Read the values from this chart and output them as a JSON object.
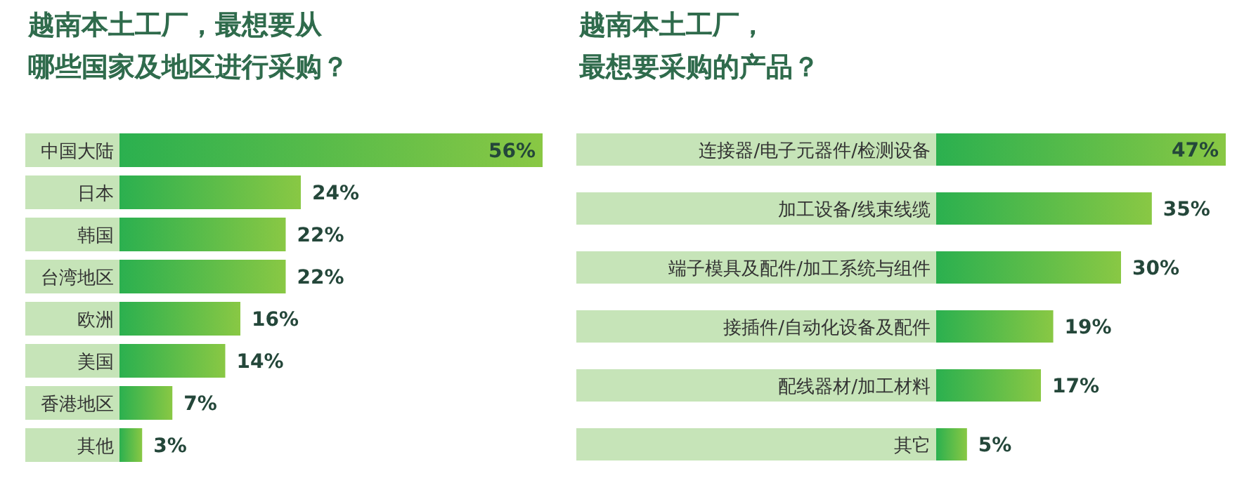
{
  "chart_data": [
    {
      "type": "bar",
      "orientation": "horizontal",
      "title": "越南本土工厂，最想要从哪些国家及地区进行采购？",
      "categories": [
        "中国大陆",
        "日本",
        "韩国",
        "台湾地区",
        "欧洲",
        "美国",
        "香港地区",
        "其他"
      ],
      "values": [
        56,
        24,
        22,
        22,
        16,
        14,
        7,
        3
      ],
      "value_labels": [
        "56%",
        "24%",
        "22%",
        "22%",
        "16%",
        "14%",
        "7%",
        "3%"
      ],
      "color": "#2bb04f"
    },
    {
      "type": "bar",
      "orientation": "horizontal",
      "title": "越南本土工厂，最想要采购的产品？",
      "categories": [
        "连接器/电子元器件/检测设备",
        "加工设备/线束线缆",
        "端子模具及配件/加工系统与组件",
        "接插件/自动化设备及配件",
        "配线器材/加工材料",
        "其它"
      ],
      "values": [
        47,
        35,
        30,
        19,
        17,
        5
      ],
      "value_labels": [
        "47%",
        "35%",
        "30%",
        "19%",
        "17%",
        "5%"
      ],
      "color": "#2bb04f"
    }
  ]
}
